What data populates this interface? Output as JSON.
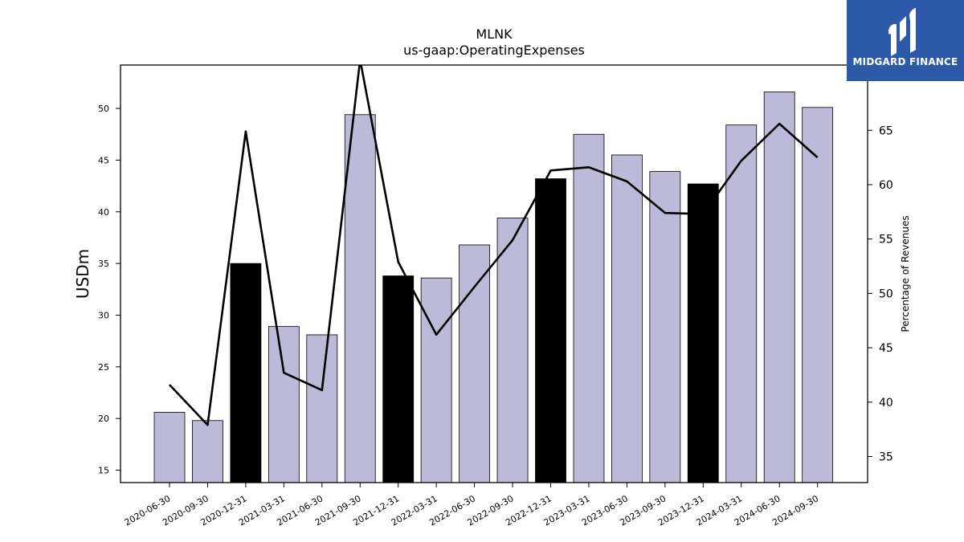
{
  "chart_data": {
    "type": "bar",
    "title": "MLNK",
    "subtitle": "us-gaap:OperatingExpenses",
    "ylabel": "USDm",
    "y2label": "Percentage of Revenues",
    "ylim": [
      13.8,
      54.2
    ],
    "y2lim": [
      32.6,
      71.0
    ],
    "yticks": [
      15,
      20,
      25,
      30,
      35,
      40,
      45,
      50
    ],
    "y2ticks": [
      35,
      40,
      45,
      50,
      55,
      60,
      65
    ],
    "categories": [
      "2020-06-30",
      "2020-09-30",
      "2020-12-31",
      "2021-03-31",
      "2021-06-30",
      "2021-09-30",
      "2021-12-31",
      "2022-03-31",
      "2022-06-30",
      "2022-09-30",
      "2022-12-31",
      "2023-03-31",
      "2023-06-30",
      "2023-09-30",
      "2023-12-31",
      "2024-03-31",
      "2024-06-30",
      "2024-09-30"
    ],
    "series": [
      {
        "type": "bar",
        "values": [
          20.6,
          19.8,
          35.0,
          28.9,
          28.1,
          49.4,
          33.8,
          33.6,
          36.8,
          39.4,
          43.2,
          47.5,
          45.5,
          43.9,
          42.7,
          48.4,
          51.6,
          50.1
        ]
      },
      {
        "type": "line",
        "axis": "right",
        "values": [
          41.6,
          37.9,
          64.9,
          42.7,
          41.1,
          71.5,
          52.9,
          46.2,
          50.6,
          54.9,
          61.3,
          61.6,
          60.3,
          57.4,
          57.3,
          62.2,
          65.6,
          62.5
        ]
      }
    ],
    "highlighted_indices": [
      2,
      6,
      10,
      14
    ],
    "colors": {
      "bar": "#bdbad9",
      "highlight": "#000000",
      "line": "#000000",
      "edge": "#000000"
    },
    "grid": false,
    "legend": "none"
  },
  "logo": {
    "text": "MIDGARD FINANCE",
    "color": "#2d5aa8"
  }
}
